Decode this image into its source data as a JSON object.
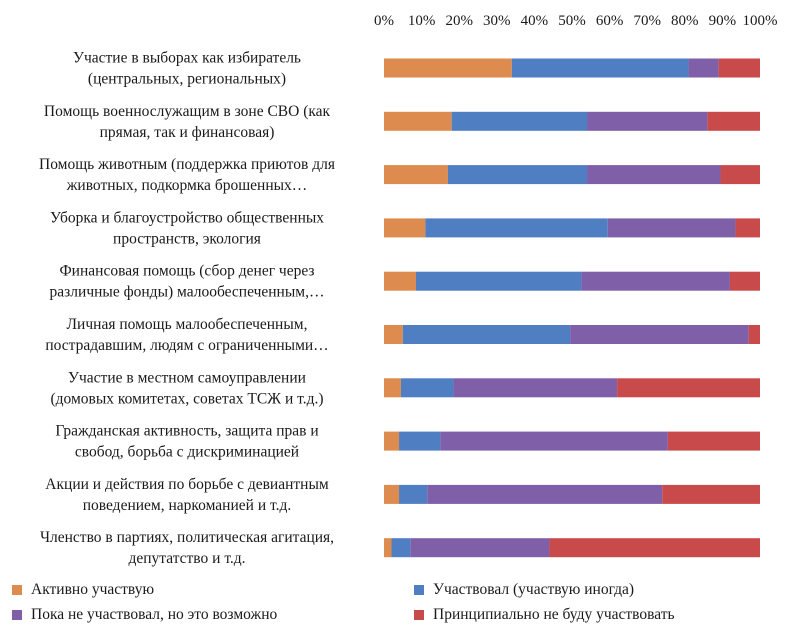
{
  "chart_data": {
    "type": "bar",
    "orientation": "horizontal",
    "stacked": "percent",
    "title": "",
    "xlabel": "",
    "ylabel": "",
    "xlim": [
      0,
      100
    ],
    "x_ticks": [
      "0%",
      "10%",
      "20%",
      "30%",
      "40%",
      "50%",
      "60%",
      "70%",
      "80%",
      "90%",
      "100%"
    ],
    "x_axis_position": "top",
    "grid": false,
    "legend_position": "bottom",
    "categories": [
      [
        "Участие в выборах как избиратель",
        "(центральных, региональных)"
      ],
      [
        "Помощь военнослужащим в зоне СВО (как",
        "прямая, так и финансовая)"
      ],
      [
        "Помощь животным (поддержка приютов для",
        "животных, подкормка брошенных…"
      ],
      [
        "Уборка и благоустройство общественных",
        "пространств, экология"
      ],
      [
        "Финансовая помощь (сбор денег через",
        "различные фонды) малообеспеченным,…"
      ],
      [
        "Личная помощь малообеспеченным,",
        "пострадавшим, людям с ограниченными…"
      ],
      [
        "Участие в местном самоуправлении",
        "(домовых комитетах, советах ТСЖ и т.д.)"
      ],
      [
        "Гражданская активность, защита прав и",
        "свобод, борьба с дискриминацией"
      ],
      [
        "Акции и действия по борьбе с девиантным",
        "поведением, наркоманией и т.д."
      ],
      [
        "Членство в партиях, политическая агитация,",
        "депутатство и т.д."
      ]
    ],
    "series": [
      {
        "name": "Активно участвую",
        "color": "#dd8b4e",
        "values": [
          34,
          18,
          17,
          11,
          8.5,
          5,
          4.5,
          4,
          4,
          2
        ]
      },
      {
        "name": "Участвовал (участвую иногда)",
        "color": "#4f7fc2",
        "values": [
          47,
          36,
          37,
          48.5,
          44,
          44.5,
          14,
          11,
          7.5,
          5
        ]
      },
      {
        "name": "Пока не участвовал, но это возможно",
        "color": "#7f5fa8",
        "values": [
          8,
          32,
          35.5,
          34,
          39.5,
          47.5,
          43.5,
          60.5,
          62.5,
          37
        ]
      },
      {
        "name": "Принципиально не буду участвовать",
        "color": "#c84a4a",
        "values": [
          11,
          14,
          10.5,
          6.5,
          8,
          3,
          38,
          24.5,
          26,
          56
        ]
      }
    ]
  }
}
